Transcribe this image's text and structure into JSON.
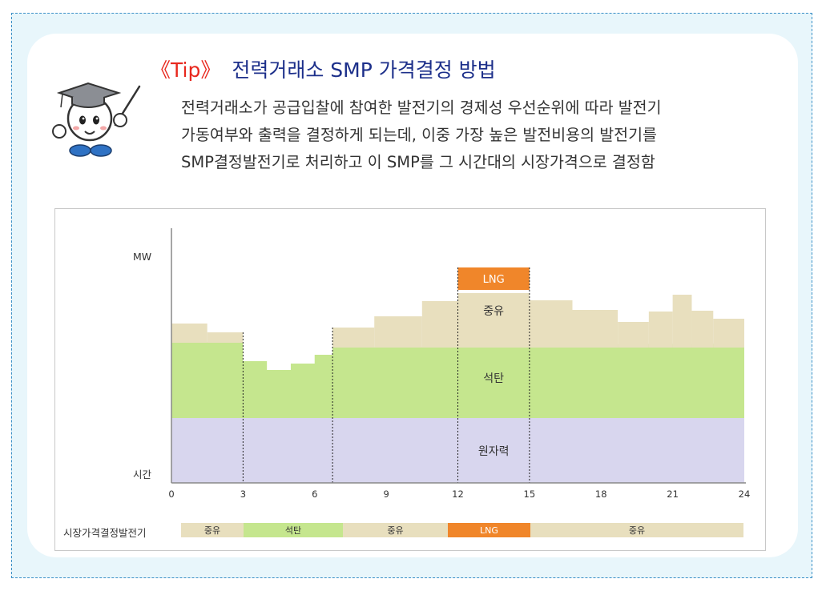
{
  "title": {
    "tag": "《Tip》",
    "text": "전력거래소 SMP 가격결정 방법"
  },
  "description": [
    "전력거래소가 공급입찰에 참여한 발전기의 경제성 우선순위에 따라 발전기",
    "가동여부와 출력을 결정하게 되는데, 이중 가장 높은 발전비용의 발전기를",
    "SMP결정발전기로 처리하고 이 SMP를 그 시간대의 시장가격으로 결정함"
  ],
  "chart_data": {
    "type": "area",
    "ylabel": "MW",
    "xlabel": "시간",
    "xlim": [
      0,
      24
    ],
    "xticks": [
      "0",
      "3",
      "6",
      "9",
      "12",
      "15",
      "18",
      "21",
      "24"
    ],
    "layers": [
      {
        "name": "원자력",
        "color": "#d8d6ee"
      },
      {
        "name": "석탄",
        "color": "#c5e68e"
      },
      {
        "name": "중유",
        "color": "#e8dfbe"
      },
      {
        "name": "LNG",
        "color": "#f0862a"
      }
    ],
    "dividers_hours": [
      3,
      6.75,
      12,
      15
    ]
  },
  "legend": {
    "label": "시장가격결정발전기",
    "segments": [
      {
        "label": "중유",
        "color": "#e8dfbe",
        "text_color": "#333333"
      },
      {
        "label": "석탄",
        "color": "#c5e68e",
        "text_color": "#333333"
      },
      {
        "label": "중유",
        "color": "#e8dfbe",
        "text_color": "#333333"
      },
      {
        "label": "LNG",
        "color": "#f0862a",
        "text_color": "#ffffff"
      },
      {
        "label": "중유",
        "color": "#e8dfbe",
        "text_color": "#333333"
      }
    ]
  }
}
